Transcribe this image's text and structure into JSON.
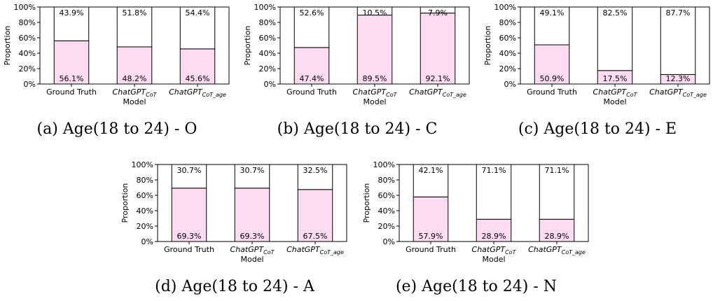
{
  "chart_data": [
    {
      "type": "bar",
      "stacked": true,
      "caption": "(a) Age(18 to 24) - O",
      "xlabel": "Model",
      "ylabel": "Proportion",
      "ylim": [
        0,
        100
      ],
      "yticks": [
        "0%",
        "20%",
        "40%",
        "60%",
        "80%",
        "100%"
      ],
      "categories": [
        {
          "main": "Ground Truth",
          "sub": ""
        },
        {
          "main": "ChatGPT",
          "sub": "CoT"
        },
        {
          "main": "ChatGPT",
          "sub": "CoT_age"
        }
      ],
      "series": [
        {
          "values": [
            56.1,
            48.2,
            45.6
          ],
          "labels": [
            "56.1%",
            "48.2%",
            "45.6%"
          ]
        },
        {
          "values": [
            43.9,
            51.8,
            54.4
          ],
          "labels": [
            "43.9%",
            "51.8%",
            "54.4%"
          ]
        }
      ],
      "colors": [
        "#fddcf2",
        "#ffffff"
      ]
    },
    {
      "type": "bar",
      "stacked": true,
      "caption": "(b) Age(18 to 24) - C",
      "xlabel": "Model",
      "ylabel": "Proportion",
      "ylim": [
        0,
        100
      ],
      "yticks": [
        "0%",
        "20%",
        "40%",
        "60%",
        "80%",
        "100%"
      ],
      "categories": [
        {
          "main": "Ground Truth",
          "sub": ""
        },
        {
          "main": "ChatGPT",
          "sub": "CoT"
        },
        {
          "main": "ChatGPT",
          "sub": "CoT_age"
        }
      ],
      "series": [
        {
          "values": [
            47.4,
            89.5,
            92.1
          ],
          "labels": [
            "47.4%",
            "89.5%",
            "92.1%"
          ]
        },
        {
          "values": [
            52.6,
            10.5,
            7.9
          ],
          "labels": [
            "52.6%",
            "10.5%",
            "7.9%"
          ]
        }
      ],
      "colors": [
        "#fddcf2",
        "#ffffff"
      ]
    },
    {
      "type": "bar",
      "stacked": true,
      "caption": "(c) Age(18 to 24) - E",
      "xlabel": "Model",
      "ylabel": "Proportion",
      "ylim": [
        0,
        100
      ],
      "yticks": [
        "0%",
        "20%",
        "40%",
        "60%",
        "80%",
        "100%"
      ],
      "categories": [
        {
          "main": "Ground Truth",
          "sub": ""
        },
        {
          "main": "ChatGPT",
          "sub": "CoT"
        },
        {
          "main": "ChatGPT",
          "sub": "CoT_age"
        }
      ],
      "series": [
        {
          "values": [
            50.9,
            17.5,
            12.3
          ],
          "labels": [
            "50.9%",
            "17.5%",
            "12.3%"
          ]
        },
        {
          "values": [
            49.1,
            82.5,
            87.7
          ],
          "labels": [
            "49.1%",
            "82.5%",
            "87.7%"
          ]
        }
      ],
      "colors": [
        "#fddcf2",
        "#ffffff"
      ]
    },
    {
      "type": "bar",
      "stacked": true,
      "caption": "(d) Age(18 to 24) - A",
      "xlabel": "Model",
      "ylabel": "Proportion",
      "ylim": [
        0,
        100
      ],
      "yticks": [
        "0%",
        "20%",
        "40%",
        "60%",
        "80%",
        "100%"
      ],
      "categories": [
        {
          "main": "Ground Truth",
          "sub": ""
        },
        {
          "main": "ChatGPT",
          "sub": "CoT"
        },
        {
          "main": "ChatGPT",
          "sub": "CoT_age"
        }
      ],
      "series": [
        {
          "values": [
            69.3,
            69.3,
            67.5
          ],
          "labels": [
            "69.3%",
            "69.3%",
            "67.5%"
          ]
        },
        {
          "values": [
            30.7,
            30.7,
            32.5
          ],
          "labels": [
            "30.7%",
            "30.7%",
            "32.5%"
          ]
        }
      ],
      "colors": [
        "#fddcf2",
        "#ffffff"
      ]
    },
    {
      "type": "bar",
      "stacked": true,
      "caption": "(e) Age(18 to 24) - N",
      "xlabel": "Model",
      "ylabel": "Proportion",
      "ylim": [
        0,
        100
      ],
      "yticks": [
        "0%",
        "20%",
        "40%",
        "60%",
        "80%",
        "100%"
      ],
      "categories": [
        {
          "main": "Ground Truth",
          "sub": ""
        },
        {
          "main": "ChatGPT",
          "sub": "CoT"
        },
        {
          "main": "ChatGPT",
          "sub": "CoT_age"
        }
      ],
      "series": [
        {
          "values": [
            57.9,
            28.9,
            28.9
          ],
          "labels": [
            "57.9%",
            "28.9%",
            "28.9%"
          ]
        },
        {
          "values": [
            42.1,
            71.1,
            71.1
          ],
          "labels": [
            "42.1%",
            "71.1%",
            "71.1%"
          ]
        }
      ],
      "colors": [
        "#fddcf2",
        "#ffffff"
      ]
    }
  ]
}
